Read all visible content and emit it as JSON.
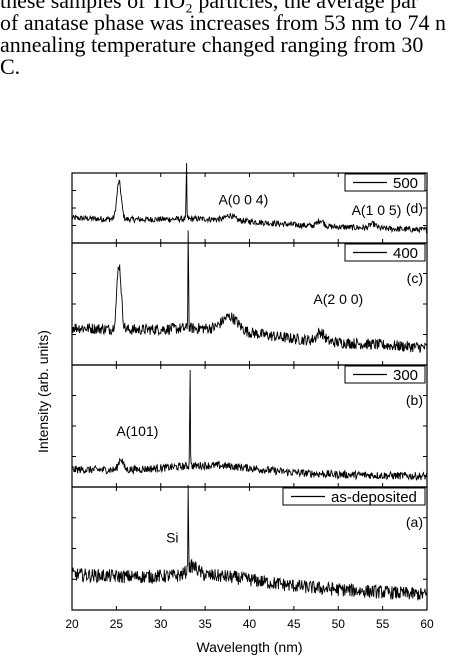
{
  "paragraph": {
    "lines": [
      "these samples of TiO₂ particles, the average par",
      "of anatase phase was increases from 53 nm to 74 n",
      "annealing temperature changed ranging from 30",
      "C."
    ]
  },
  "chart_data": {
    "type": "line",
    "xlabel": "Wavelength (nm)",
    "ylabel": "Intensity (arb. units)",
    "xlim": [
      20,
      60
    ],
    "xticks": [
      20,
      25,
      30,
      35,
      40,
      45,
      50,
      55,
      60
    ],
    "grid": false,
    "colors": {
      "line": "#000000",
      "axes": "#000000",
      "background": "#ffffff"
    },
    "panels": [
      {
        "legend": "500",
        "panel_label": "(d)",
        "legend_position": "top-right",
        "baseline_start": 0.35,
        "baseline_end": 0.15,
        "noise": 0.05,
        "peaks": [
          {
            "x": 25.3,
            "height": 0.62,
            "width": 0.35
          },
          {
            "x": 32.9,
            "height": 0.98,
            "width": 0.05
          },
          {
            "x": 37.8,
            "height": 0.08,
            "width": 0.6
          },
          {
            "x": 48.0,
            "height": 0.1,
            "width": 0.5
          },
          {
            "x": 53.9,
            "height": 0.07,
            "width": 0.5
          }
        ],
        "annotations": [
          {
            "text": "A(0 0 4)",
            "x": 36.5,
            "y": 0.55
          },
          {
            "text": "A(1 0 5)",
            "x": 51.5,
            "y": 0.4
          }
        ]
      },
      {
        "legend": "400",
        "panel_label": "(c)",
        "legend_position": "top-right",
        "baseline_start": 0.3,
        "baseline_end": 0.12,
        "noise": 0.05,
        "peaks": [
          {
            "x": 25.3,
            "height": 0.58,
            "width": 0.35
          },
          {
            "x": 33.1,
            "height": 0.96,
            "width": 0.05
          },
          {
            "x": 37.8,
            "height": 0.12,
            "width": 1.2
          },
          {
            "x": 48.0,
            "height": 0.08,
            "width": 0.6
          }
        ],
        "annotations": [
          {
            "text": "A(2 0 0)",
            "x": 47.2,
            "y": 0.5
          }
        ]
      },
      {
        "legend": "300",
        "panel_label": "(b)",
        "legend_position": "top-right",
        "baseline_start": 0.12,
        "baseline_end": 0.06,
        "noise": 0.035,
        "peaks": [
          {
            "x": 25.5,
            "height": 0.1,
            "width": 0.35
          },
          {
            "x": 33.3,
            "height": 0.95,
            "width": 0.05
          }
        ],
        "annotations": [
          {
            "text": "A(101)",
            "x": 25.0,
            "y": 0.42
          }
        ]
      },
      {
        "legend": "as-deposited",
        "panel_label": "(a)",
        "legend_position": "top-right",
        "baseline_start": 0.28,
        "baseline_end": 0.1,
        "noise": 0.06,
        "peaks": [
          {
            "x": 33.1,
            "height": 0.75,
            "width": 0.05
          },
          {
            "x": 33.6,
            "height": 0.08,
            "width": 0.8
          }
        ],
        "annotations": [
          {
            "text": "Si",
            "x": 30.6,
            "y": 0.55
          }
        ]
      }
    ]
  }
}
